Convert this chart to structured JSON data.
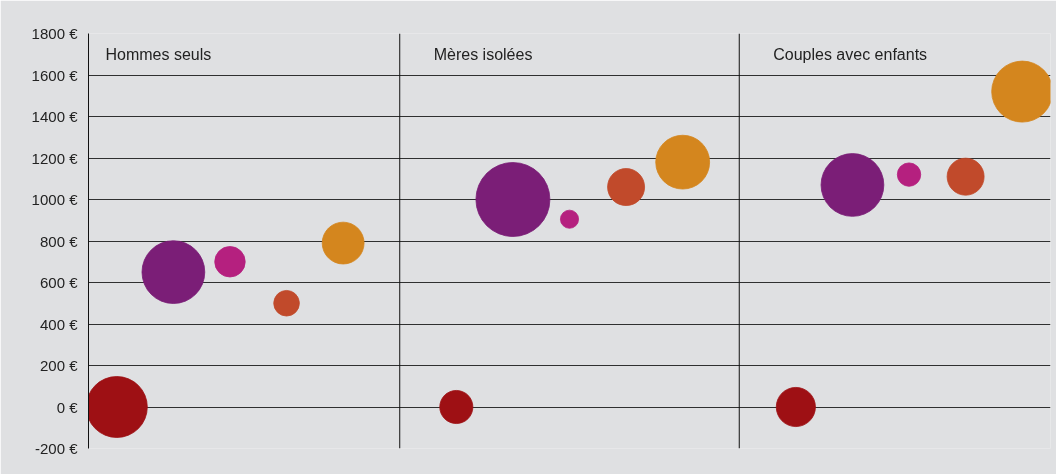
{
  "chart_data": {
    "type": "bubble",
    "annotations": [
      "Hommes seuls",
      "Mères isolées",
      "Couples avec enfants"
    ],
    "categories": [
      null,
      null,
      null,
      null,
      null,
      null,
      null,
      null,
      null,
      null,
      null,
      null,
      null,
      null,
      null,
      null,
      null
    ],
    "ylim": [
      -200,
      1800
    ],
    "yticks": [
      {
        "value": -200,
        "label": "-200 €"
      },
      {
        "value": 0,
        "label": "0 €"
      },
      {
        "value": 200,
        "label": "200 €"
      },
      {
        "value": 400,
        "label": "400 €"
      },
      {
        "value": 600,
        "label": "600 €"
      },
      {
        "value": 800,
        "label": "800 €"
      },
      {
        "value": 1000,
        "label": "1000 €"
      },
      {
        "value": 1200,
        "label": "1200 €"
      },
      {
        "value": 1400,
        "label": "1400 €"
      },
      {
        "value": 1600,
        "label": "1600 €"
      },
      {
        "value": 1800,
        "label": "1800 €"
      }
    ],
    "grid": "y",
    "tick_labels": "y",
    "values": [
      0,
      650,
      700,
      500,
      790,
      null,
      0,
      1000,
      905,
      1060,
      1180,
      null,
      0,
      1070,
      1120,
      1110,
      1520
    ],
    "sizes": [
      0.68,
      0.72,
      0.17,
      0.12,
      0.32,
      null,
      0.2,
      1,
      0.06,
      0.25,
      0.53,
      null,
      0.28,
      0.72,
      0.1,
      0.25,
      0.68
    ],
    "colors": [
      "#9e1014",
      "#7b1e77",
      "#b5207f",
      "#c14a2b",
      "#d4861e",
      null,
      "#9e1014",
      "#7b1e77",
      "#b5207f",
      "#c14a2b",
      "#d4861e",
      null,
      "#9e1014",
      "#7b1e77",
      "#b5207f",
      "#c14a2b",
      "#d4861e"
    ]
  }
}
